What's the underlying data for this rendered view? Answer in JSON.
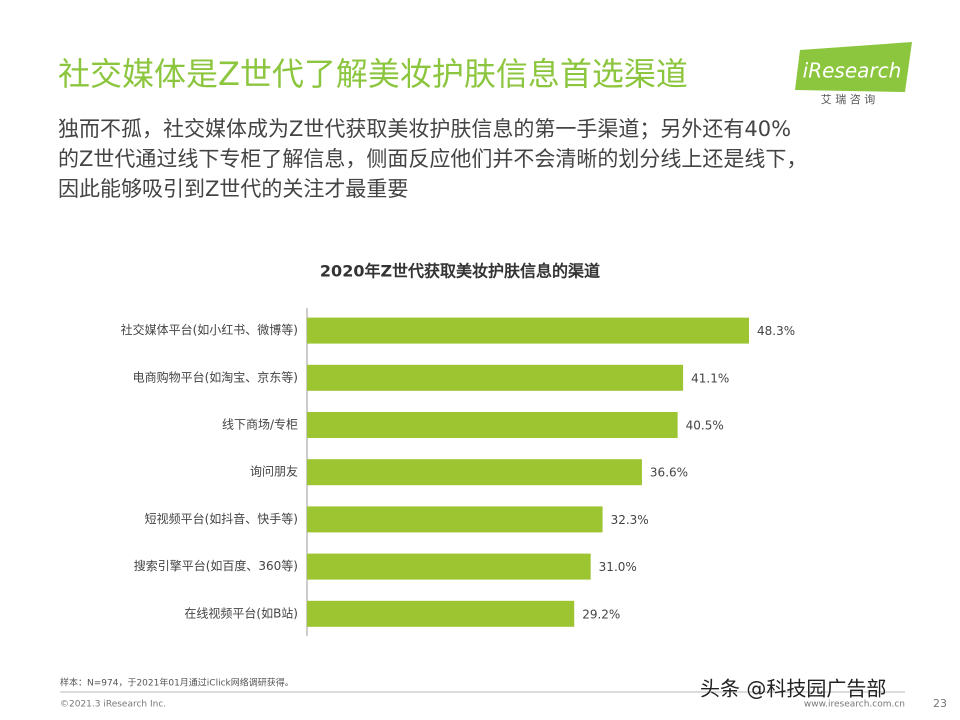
{
  "header": {
    "title": "社交媒体是Z世代了解美妆护肤信息首选渠道",
    "subtitle_lines": [
      "独而不孤，社交媒体成为Z世代获取美妆护肤信息的第一手渠道；另外还有40%",
      "的Z世代通过线下专柜了解信息，侧面反应他们并不会清晰的划分线上还是线下，",
      "因此能够吸引到Z世代的关注才最重要"
    ]
  },
  "logo": {
    "name": "iResearch",
    "subname": "艾 瑞 咨 询"
  },
  "chart_data": {
    "type": "hbar",
    "title": "2020年Z世代获取美妆护肤信息的渠道",
    "categories": [
      "社交媒体平台(如小红书、微博等)",
      "电商购物平台(如淘宝、京东等)",
      "线下商场/专柜",
      "询问朋友",
      "短视频平台(如抖音、快手等)",
      "搜索引擎平台(如百度、360等)",
      "在线视频平台(如B站)"
    ],
    "values": [
      48.3,
      41.1,
      40.5,
      36.6,
      32.3,
      31.0,
      29.2
    ],
    "value_labels": [
      "48.3%",
      "41.1%",
      "40.5%",
      "36.6%",
      "32.3%",
      "31.0%",
      "29.2%"
    ],
    "color": "#9dc431"
  },
  "footer": {
    "note": "样本：N=974，于2021年01月通过iClick网络调研获得。",
    "copyright": "©2021.3 iResearch Inc.",
    "website": "www.iresearch.com.cn",
    "page": "23"
  },
  "watermark": "头条 @科技园广告部"
}
